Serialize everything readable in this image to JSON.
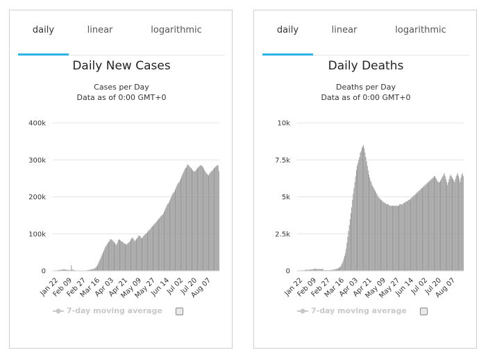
{
  "panels": [
    {
      "tabs": [
        "daily",
        "linear",
        "logarithmic"
      ],
      "active_tab": "daily",
      "legend_label": "7-day moving average",
      "chart_data": {
        "type": "bar",
        "title": "Daily New Cases",
        "subtitle_lines": [
          "Cases per Day",
          "Data as of 0:00 GMT+0"
        ],
        "color": "#999999",
        "ylim": [
          0,
          400000
        ],
        "y_ticks": [
          "0",
          "100k",
          "200k",
          "300k",
          "400k"
        ],
        "y_tick_values": [
          0,
          100000,
          200000,
          300000,
          400000
        ],
        "x_tick_labels": [
          "Jan 22",
          "Feb 09",
          "Feb 27",
          "Mar 16",
          "Apr 03",
          "Apr 21",
          "May 09",
          "May 27",
          "Jun 14",
          "Jul 02",
          "Jul 20",
          "Aug 07"
        ],
        "series": [
          {
            "values": [
              500,
              300,
              600,
              900,
              1100,
              1300,
              1700,
              2000,
              2100,
              2600,
              2800,
              3100,
              3900,
              3700,
              3900,
              3700,
              3100,
              2800,
              2700,
              2500,
              2000,
              1900,
              1800,
              15100,
              5100,
              2700,
              2000,
              1800,
              1200,
              900,
              800,
              900,
              700,
              600,
              500,
              300,
              400,
              500,
              400,
              500,
              600,
              800,
              1000,
              1800,
              2000,
              2400,
              2700,
              3200,
              4100,
              4500,
              4000,
              4700,
              6100,
              8000,
              9500,
              12000,
              15000,
              20000,
              25000,
              30000,
              35000,
              40000,
              45000,
              50000,
              55000,
              60000,
              65000,
              68000,
              72000,
              75000,
              78000,
              80000,
              85000,
              86000,
              84000,
              82000,
              80000,
              78000,
              75000,
              72000,
              70000,
              76000,
              83000,
              85000,
              84000,
              82000,
              80000,
              79000,
              78000,
              75000,
              74000,
              73000,
              71000,
              72000,
              74000,
              76000,
              78000,
              80000,
              85000,
              88000,
              90000,
              87000,
              84000,
              80000,
              83000,
              86000,
              88000,
              92000,
              95000,
              95000,
              93000,
              90000,
              88000,
              91000,
              94000,
              96000,
              99000,
              101000,
              102000,
              105000,
              108000,
              110000,
              112000,
              115000,
              118000,
              120000,
              122000,
              125000,
              127000,
              130000,
              132000,
              135000,
              138000,
              140000,
              142000,
              145000,
              148000,
              150000,
              152000,
              155000,
              160000,
              165000,
              170000,
              175000,
              180000,
              182000,
              185000,
              190000,
              195000,
              200000,
              205000,
              210000,
              212000,
              215000,
              220000,
              225000,
              230000,
              235000,
              238000,
              240000,
              245000,
              250000,
              255000,
              260000,
              265000,
              270000,
              275000,
              278000,
              280000,
              285000,
              288000,
              285000,
              282000,
              280000,
              278000,
              275000,
              272000,
              270000,
              268000,
              270000,
              272000,
              275000,
              278000,
              280000,
              282000,
              284000,
              286000,
              285000,
              283000,
              280000,
              276000,
              272000,
              268000,
              265000,
              262000,
              260000,
              258000,
              262000,
              265000,
              268000,
              270000,
              272000,
              275000,
              278000,
              280000,
              282000,
              284000,
              286000,
              285000,
              270000
            ]
          }
        ]
      }
    },
    {
      "tabs": [
        "daily",
        "linear",
        "logarithmic"
      ],
      "active_tab": "daily",
      "legend_label": "7-day moving average",
      "chart_data": {
        "type": "bar",
        "title": "Daily Deaths",
        "subtitle_lines": [
          "Deaths per Day",
          "Data as of 0:00 GMT+0"
        ],
        "color": "#999999",
        "ylim": [
          0,
          10000
        ],
        "y_ticks": [
          "0",
          "2.5k",
          "5k",
          "7.5k",
          "10k"
        ],
        "y_tick_values": [
          0,
          2500,
          5000,
          7500,
          10000
        ],
        "x_tick_labels": [
          "Jan 22",
          "Feb 09",
          "Feb 27",
          "Mar 16",
          "Apr 03",
          "Apr 21",
          "May 09",
          "May 27",
          "Jun 14",
          "Jul 02",
          "Jul 20",
          "Aug 07"
        ],
        "series": [
          {
            "values": [
              17,
              1,
              8,
              16,
              14,
              26,
              49,
              2,
              38,
              42,
              46,
              103,
              64,
              66,
              73,
              73,
              86,
              89,
              97,
              108,
              97,
              146,
              121,
              143,
              142,
              105,
              98,
              136,
              115,
              118,
              109,
              97,
              150,
              71,
              52,
              29,
              44,
              47,
              35,
              42,
              31,
              38,
              57,
              64,
              65,
              53,
              80,
              98,
              104,
              125,
              135,
              148,
              180,
              210,
              260,
              300,
              400,
              520,
              650,
              820,
              1000,
              1200,
              1500,
              1900,
              2300,
              2700,
              3100,
              3500,
              3900,
              4300,
              4800,
              5200,
              5600,
              6000,
              6400,
              6800,
              7100,
              7300,
              7500,
              7700,
              8000,
              8100,
              8300,
              8400,
              8500,
              8300,
              8000,
              7700,
              7400,
              7100,
              6800,
              6500,
              6300,
              6100,
              6000,
              5800,
              5700,
              5600,
              5500,
              5400,
              5300,
              5200,
              5100,
              5000,
              4900,
              4900,
              4800,
              4800,
              4700,
              4700,
              4600,
              4600,
              4600,
              4500,
              4500,
              4500,
              4500,
              4400,
              4400,
              4400,
              4400,
              4400,
              4400,
              4400,
              4400,
              4400,
              4400,
              4400,
              4400,
              4400,
              4500,
              4500,
              4500,
              4500,
              4500,
              4600,
              4600,
              4600,
              4700,
              4700,
              4700,
              4800,
              4800,
              4800,
              4900,
              4900,
              5000,
              5000,
              5100,
              5100,
              5200,
              5200,
              5300,
              5300,
              5400,
              5400,
              5500,
              5500,
              5600,
              5600,
              5700,
              5700,
              5800,
              5800,
              5900,
              5900,
              6000,
              6000,
              6100,
              6100,
              6200,
              6200,
              6300,
              6300,
              6400,
              6400,
              6300,
              6200,
              6100,
              6000,
              6000,
              6000,
              6100,
              6200,
              6300,
              6400,
              6500,
              6600,
              6400,
              6200,
              6000,
              5800,
              6000,
              6200,
              6400,
              6500,
              6400,
              6300,
              6200,
              6100,
              6000,
              6200,
              6400,
              6500,
              6600,
              6400,
              6200,
              6000,
              6300,
              6500,
              6600,
              6400
            ]
          }
        ]
      }
    }
  ]
}
